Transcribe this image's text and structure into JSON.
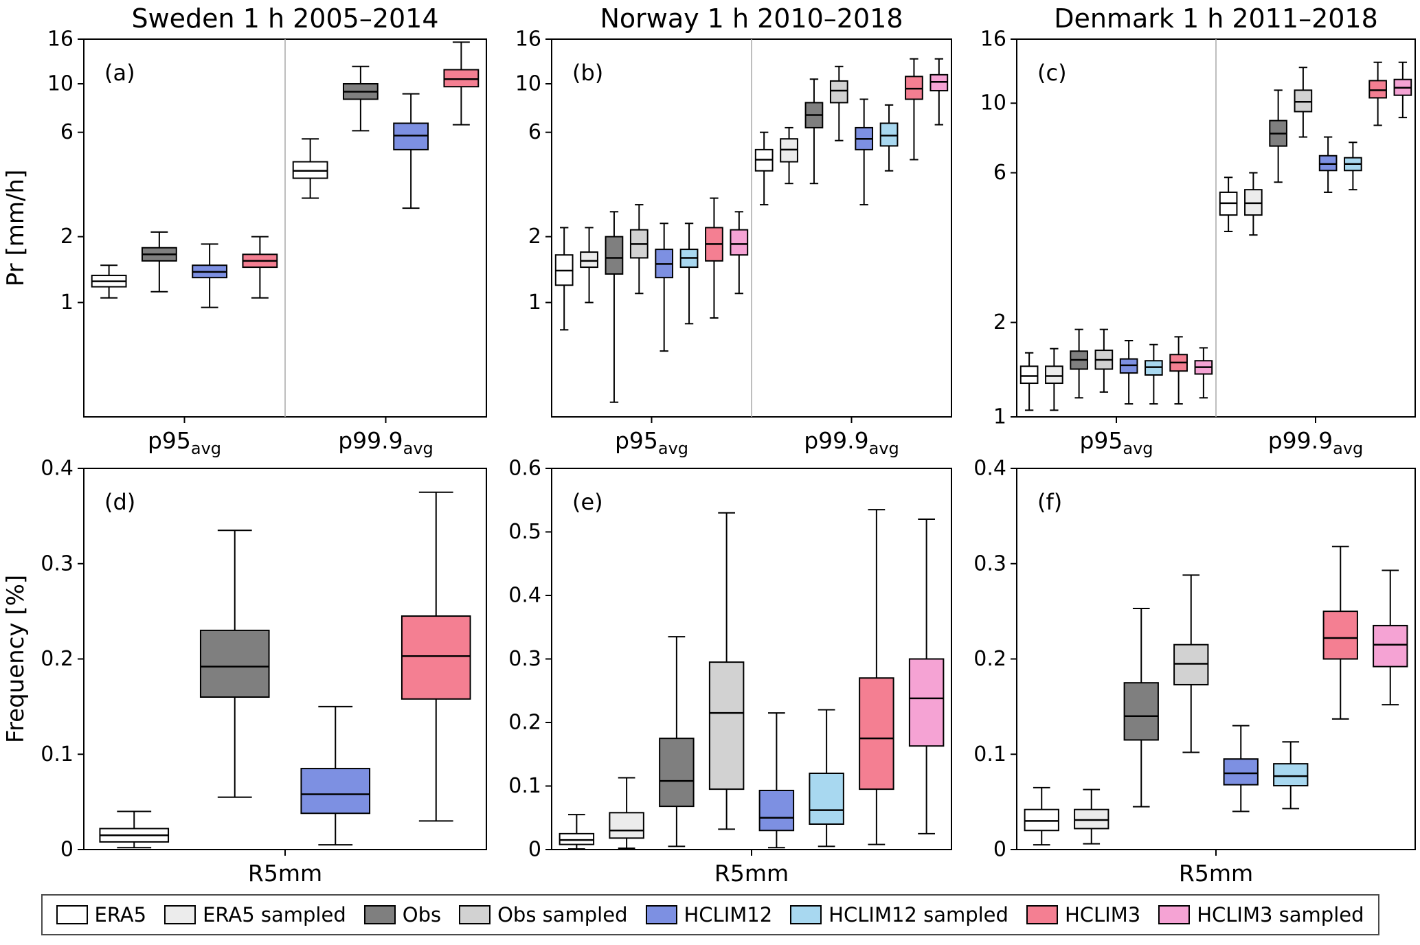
{
  "figure": {
    "background": "#ffffff",
    "series": [
      {
        "name": "ERA5",
        "color": "#ffffff"
      },
      {
        "name": "ERA5 sampled",
        "color": "#ececec"
      },
      {
        "name": "Obs",
        "color": "#7f7f7f"
      },
      {
        "name": "Obs sampled",
        "color": "#d2d2d2"
      },
      {
        "name": "HCLIM12",
        "color": "#7d90e2"
      },
      {
        "name": "HCLIM12 sampled",
        "color": "#a8d8f0"
      },
      {
        "name": "HCLIM3",
        "color": "#f47f92"
      },
      {
        "name": "HCLIM3 sampled",
        "color": "#f5a3d4"
      }
    ]
  },
  "chart_data": [
    {
      "id": "a",
      "type": "box",
      "panel_label": "(a)",
      "title": "Sweden 1 h 2005–2014",
      "ylabel": "Pr [mm/h]",
      "yscale": "log",
      "ylim": [
        0.3,
        16
      ],
      "yticks": [
        {
          "v": 1,
          "label": "1"
        },
        {
          "v": 2,
          "label": "2"
        },
        {
          "v": 6,
          "label": "6"
        },
        {
          "v": 10,
          "label": "10"
        },
        {
          "v": 16,
          "label": "16"
        }
      ],
      "groups": [
        {
          "label": "p95",
          "sub": "avg",
          "boxes": [
            {
              "series": "ERA5",
              "lo": 1.05,
              "q1": 1.18,
              "med": 1.25,
              "q3": 1.33,
              "hi": 1.48
            },
            {
              "series": "Obs",
              "lo": 1.12,
              "q1": 1.55,
              "med": 1.66,
              "q3": 1.78,
              "hi": 2.1
            },
            {
              "series": "HCLIM12",
              "lo": 0.95,
              "q1": 1.3,
              "med": 1.38,
              "q3": 1.48,
              "hi": 1.85
            },
            {
              "series": "HCLIM3",
              "lo": 1.05,
              "q1": 1.45,
              "med": 1.55,
              "q3": 1.66,
              "hi": 2.0
            }
          ]
        },
        {
          "label": "p99.9",
          "sub": "avg",
          "boxes": [
            {
              "series": "ERA5",
              "lo": 3.0,
              "q1": 3.7,
              "med": 4.0,
              "q3": 4.4,
              "hi": 5.6
            },
            {
              "series": "Obs",
              "lo": 6.1,
              "q1": 8.5,
              "med": 9.2,
              "q3": 10.0,
              "hi": 12.0
            },
            {
              "series": "HCLIM12",
              "lo": 2.7,
              "q1": 5.0,
              "med": 5.8,
              "q3": 6.6,
              "hi": 9.0
            },
            {
              "series": "HCLIM3",
              "lo": 6.5,
              "q1": 9.7,
              "med": 10.5,
              "q3": 11.6,
              "hi": 15.5
            }
          ]
        }
      ]
    },
    {
      "id": "b",
      "type": "box",
      "panel_label": "(b)",
      "title": "Norway 1 h 2010–2018",
      "ylabel": null,
      "yscale": "log",
      "ylim": [
        0.3,
        16
      ],
      "yticks": [
        {
          "v": 1,
          "label": "1"
        },
        {
          "v": 2,
          "label": "2"
        },
        {
          "v": 6,
          "label": "6"
        },
        {
          "v": 10,
          "label": "10"
        },
        {
          "v": 16,
          "label": "16"
        }
      ],
      "groups": [
        {
          "label": "p95",
          "sub": "avg",
          "boxes": [
            {
              "series": "ERA5",
              "lo": 0.75,
              "q1": 1.2,
              "med": 1.4,
              "q3": 1.65,
              "hi": 2.2
            },
            {
              "series": "ERA5 sampled",
              "lo": 1.0,
              "q1": 1.45,
              "med": 1.55,
              "q3": 1.7,
              "hi": 2.2
            },
            {
              "series": "Obs",
              "lo": 0.35,
              "q1": 1.35,
              "med": 1.6,
              "q3": 2.0,
              "hi": 2.6
            },
            {
              "series": "Obs sampled",
              "lo": 1.1,
              "q1": 1.6,
              "med": 1.85,
              "q3": 2.15,
              "hi": 2.8
            },
            {
              "series": "HCLIM12",
              "lo": 0.6,
              "q1": 1.3,
              "med": 1.5,
              "q3": 1.75,
              "hi": 2.3
            },
            {
              "series": "HCLIM12 sampled",
              "lo": 0.8,
              "q1": 1.45,
              "med": 1.6,
              "q3": 1.75,
              "hi": 2.3
            },
            {
              "series": "HCLIM3",
              "lo": 0.85,
              "q1": 1.55,
              "med": 1.85,
              "q3": 2.2,
              "hi": 3.0
            },
            {
              "series": "HCLIM3 sampled",
              "lo": 1.1,
              "q1": 1.65,
              "med": 1.85,
              "q3": 2.15,
              "hi": 2.6
            }
          ]
        },
        {
          "label": "p99.9",
          "sub": "avg",
          "boxes": [
            {
              "series": "ERA5",
              "lo": 2.8,
              "q1": 4.0,
              "med": 4.5,
              "q3": 5.0,
              "hi": 6.0
            },
            {
              "series": "ERA5 sampled",
              "lo": 3.5,
              "q1": 4.4,
              "med": 5.0,
              "q3": 5.6,
              "hi": 6.3
            },
            {
              "series": "Obs",
              "lo": 3.5,
              "q1": 6.3,
              "med": 7.2,
              "q3": 8.2,
              "hi": 10.5
            },
            {
              "series": "Obs sampled",
              "lo": 5.5,
              "q1": 8.2,
              "med": 9.3,
              "q3": 10.3,
              "hi": 12.0
            },
            {
              "series": "HCLIM12",
              "lo": 2.8,
              "q1": 5.0,
              "med": 5.6,
              "q3": 6.3,
              "hi": 8.5
            },
            {
              "series": "HCLIM12 sampled",
              "lo": 4.0,
              "q1": 5.2,
              "med": 5.8,
              "q3": 6.6,
              "hi": 8.0
            },
            {
              "series": "HCLIM3",
              "lo": 4.5,
              "q1": 8.5,
              "med": 9.5,
              "q3": 10.8,
              "hi": 13.0
            },
            {
              "series": "HCLIM3 sampled",
              "lo": 6.5,
              "q1": 9.3,
              "med": 10.2,
              "q3": 11.0,
              "hi": 13.0
            }
          ]
        }
      ]
    },
    {
      "id": "c",
      "type": "box",
      "panel_label": "(c)",
      "title": "Denmark 1 h 2011–2018",
      "ylabel": null,
      "yscale": "log",
      "ylim": [
        1.0,
        16
      ],
      "yticks": [
        {
          "v": 1,
          "label": "1"
        },
        {
          "v": 2,
          "label": "2"
        },
        {
          "v": 6,
          "label": "6"
        },
        {
          "v": 10,
          "label": "10"
        },
        {
          "v": 16,
          "label": "16"
        }
      ],
      "groups": [
        {
          "label": "p95",
          "sub": "avg",
          "boxes": [
            {
              "series": "ERA5",
              "lo": 1.05,
              "q1": 1.28,
              "med": 1.35,
              "q3": 1.45,
              "hi": 1.6
            },
            {
              "series": "ERA5 sampled",
              "lo": 1.05,
              "q1": 1.28,
              "med": 1.35,
              "q3": 1.45,
              "hi": 1.65
            },
            {
              "series": "Obs",
              "lo": 1.15,
              "q1": 1.42,
              "med": 1.52,
              "q3": 1.62,
              "hi": 1.9
            },
            {
              "series": "Obs sampled",
              "lo": 1.2,
              "q1": 1.42,
              "med": 1.52,
              "q3": 1.63,
              "hi": 1.9
            },
            {
              "series": "HCLIM12",
              "lo": 1.1,
              "q1": 1.38,
              "med": 1.46,
              "q3": 1.53,
              "hi": 1.75
            },
            {
              "series": "HCLIM12 sampled",
              "lo": 1.1,
              "q1": 1.36,
              "med": 1.44,
              "q3": 1.51,
              "hi": 1.7
            },
            {
              "series": "HCLIM3",
              "lo": 1.1,
              "q1": 1.4,
              "med": 1.49,
              "q3": 1.58,
              "hi": 1.8
            },
            {
              "series": "HCLIM3 sampled",
              "lo": 1.15,
              "q1": 1.37,
              "med": 1.44,
              "q3": 1.51,
              "hi": 1.66
            }
          ]
        },
        {
          "label": "p99.9",
          "sub": "avg",
          "boxes": [
            {
              "series": "ERA5",
              "lo": 3.9,
              "q1": 4.4,
              "med": 4.8,
              "q3": 5.2,
              "hi": 5.8
            },
            {
              "series": "ERA5 sampled",
              "lo": 3.8,
              "q1": 4.4,
              "med": 4.8,
              "q3": 5.3,
              "hi": 6.0
            },
            {
              "series": "Obs",
              "lo": 5.6,
              "q1": 7.3,
              "med": 8.0,
              "q3": 8.8,
              "hi": 11.0
            },
            {
              "series": "Obs sampled",
              "lo": 7.8,
              "q1": 9.4,
              "med": 10.1,
              "q3": 11.0,
              "hi": 13.0
            },
            {
              "series": "HCLIM12",
              "lo": 5.2,
              "q1": 6.1,
              "med": 6.4,
              "q3": 6.8,
              "hi": 7.8
            },
            {
              "series": "HCLIM12 sampled",
              "lo": 5.3,
              "q1": 6.1,
              "med": 6.4,
              "q3": 6.7,
              "hi": 7.5
            },
            {
              "series": "HCLIM3",
              "lo": 8.5,
              "q1": 10.4,
              "med": 11.0,
              "q3": 11.8,
              "hi": 13.5
            },
            {
              "series": "HCLIM3 sampled",
              "lo": 9.0,
              "q1": 10.6,
              "med": 11.2,
              "q3": 11.9,
              "hi": 13.5
            }
          ]
        }
      ]
    },
    {
      "id": "d",
      "type": "box",
      "panel_label": "(d)",
      "title": null,
      "ylabel": "Frequency [%]",
      "yscale": "linear",
      "ylim": [
        0,
        0.4
      ],
      "yticks": [
        {
          "v": 0,
          "label": "0"
        },
        {
          "v": 0.1,
          "label": "0.1"
        },
        {
          "v": 0.2,
          "label": "0.2"
        },
        {
          "v": 0.3,
          "label": "0.3"
        },
        {
          "v": 0.4,
          "label": "0.4"
        }
      ],
      "groups": [
        {
          "label": "R5mm",
          "sub": null,
          "boxes": [
            {
              "series": "ERA5",
              "lo": 0.002,
              "q1": 0.008,
              "med": 0.015,
              "q3": 0.022,
              "hi": 0.04
            },
            {
              "series": "Obs",
              "lo": 0.055,
              "q1": 0.16,
              "med": 0.192,
              "q3": 0.23,
              "hi": 0.335
            },
            {
              "series": "HCLIM12",
              "lo": 0.005,
              "q1": 0.038,
              "med": 0.058,
              "q3": 0.085,
              "hi": 0.15
            },
            {
              "series": "HCLIM3",
              "lo": 0.03,
              "q1": 0.158,
              "med": 0.203,
              "q3": 0.245,
              "hi": 0.375
            }
          ]
        }
      ]
    },
    {
      "id": "e",
      "type": "box",
      "panel_label": "(e)",
      "title": null,
      "ylabel": null,
      "yscale": "linear",
      "ylim": [
        0,
        0.6
      ],
      "yticks": [
        {
          "v": 0,
          "label": "0"
        },
        {
          "v": 0.1,
          "label": "0.1"
        },
        {
          "v": 0.2,
          "label": "0.2"
        },
        {
          "v": 0.3,
          "label": "0.3"
        },
        {
          "v": 0.4,
          "label": "0.4"
        },
        {
          "v": 0.5,
          "label": "0.5"
        },
        {
          "v": 0.6,
          "label": "0.6"
        }
      ],
      "groups": [
        {
          "label": "R5mm",
          "sub": null,
          "boxes": [
            {
              "series": "ERA5",
              "lo": 0.001,
              "q1": 0.008,
              "med": 0.015,
              "q3": 0.025,
              "hi": 0.055
            },
            {
              "series": "ERA5 sampled",
              "lo": 0.002,
              "q1": 0.018,
              "med": 0.03,
              "q3": 0.058,
              "hi": 0.113
            },
            {
              "series": "Obs",
              "lo": 0.005,
              "q1": 0.068,
              "med": 0.108,
              "q3": 0.175,
              "hi": 0.335
            },
            {
              "series": "Obs sampled",
              "lo": 0.032,
              "q1": 0.095,
              "med": 0.215,
              "q3": 0.295,
              "hi": 0.53
            },
            {
              "series": "HCLIM12",
              "lo": 0.003,
              "q1": 0.03,
              "med": 0.05,
              "q3": 0.093,
              "hi": 0.215
            },
            {
              "series": "HCLIM12 sampled",
              "lo": 0.005,
              "q1": 0.04,
              "med": 0.062,
              "q3": 0.12,
              "hi": 0.22
            },
            {
              "series": "HCLIM3",
              "lo": 0.008,
              "q1": 0.095,
              "med": 0.175,
              "q3": 0.27,
              "hi": 0.535
            },
            {
              "series": "HCLIM3 sampled",
              "lo": 0.025,
              "q1": 0.163,
              "med": 0.238,
              "q3": 0.3,
              "hi": 0.52
            }
          ]
        }
      ]
    },
    {
      "id": "f",
      "type": "box",
      "panel_label": "(f)",
      "title": null,
      "ylabel": null,
      "yscale": "linear",
      "ylim": [
        0,
        0.4
      ],
      "yticks": [
        {
          "v": 0,
          "label": "0"
        },
        {
          "v": 0.1,
          "label": "0.1"
        },
        {
          "v": 0.2,
          "label": "0.2"
        },
        {
          "v": 0.3,
          "label": "0.3"
        },
        {
          "v": 0.4,
          "label": "0.4"
        }
      ],
      "groups": [
        {
          "label": "R5mm",
          "sub": null,
          "boxes": [
            {
              "series": "ERA5",
              "lo": 0.005,
              "q1": 0.02,
              "med": 0.03,
              "q3": 0.042,
              "hi": 0.065
            },
            {
              "series": "ERA5 sampled",
              "lo": 0.006,
              "q1": 0.022,
              "med": 0.031,
              "q3": 0.042,
              "hi": 0.063
            },
            {
              "series": "Obs",
              "lo": 0.045,
              "q1": 0.115,
              "med": 0.14,
              "q3": 0.175,
              "hi": 0.253
            },
            {
              "series": "Obs sampled",
              "lo": 0.102,
              "q1": 0.173,
              "med": 0.195,
              "q3": 0.215,
              "hi": 0.288
            },
            {
              "series": "HCLIM12",
              "lo": 0.04,
              "q1": 0.068,
              "med": 0.08,
              "q3": 0.095,
              "hi": 0.13
            },
            {
              "series": "HCLIM12 sampled",
              "lo": 0.043,
              "q1": 0.067,
              "med": 0.077,
              "q3": 0.09,
              "hi": 0.113
            },
            {
              "series": "HCLIM3",
              "lo": 0.137,
              "q1": 0.2,
              "med": 0.222,
              "q3": 0.25,
              "hi": 0.318
            },
            {
              "series": "HCLIM3 sampled",
              "lo": 0.152,
              "q1": 0.192,
              "med": 0.215,
              "q3": 0.235,
              "hi": 0.293
            }
          ]
        }
      ]
    }
  ]
}
